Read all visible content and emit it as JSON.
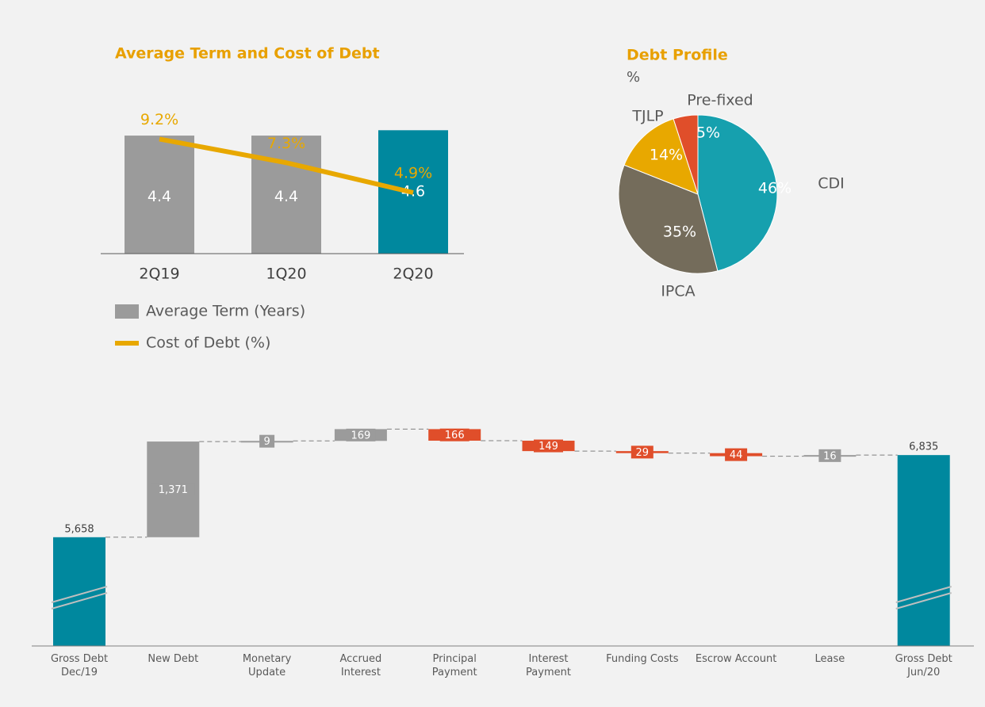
{
  "chart_data": [
    {
      "type": "bar",
      "title": "Average Term and Cost of Debt",
      "categories": [
        "2Q19",
        "1Q20",
        "2Q20"
      ],
      "series": [
        {
          "name": "Average Term (Years)",
          "type": "bar",
          "color": "#9b9b9b",
          "colors": [
            "#9b9b9b",
            "#9b9b9b",
            "#00889e"
          ],
          "values": [
            4.4,
            4.4,
            4.6
          ]
        },
        {
          "name": "Cost of Debt (%)",
          "type": "line",
          "axis": "y2",
          "color": "#e8a800",
          "values": [
            9.2,
            7.3,
            4.9
          ],
          "value_labels": [
            "9.2%",
            "7.3%",
            "4.9%"
          ]
        }
      ],
      "ylim": [
        0,
        6.5
      ],
      "y2lim": [
        0,
        14
      ]
    },
    {
      "type": "pie",
      "title": "Debt Profile",
      "subtitle": "%",
      "categories": [
        "CDI",
        "IPCA",
        "TJLP",
        "Pre-fixed"
      ],
      "values": [
        46,
        35,
        14,
        5
      ],
      "value_labels": [
        "46%",
        "35%",
        "14%",
        "5%"
      ],
      "colors": [
        "#16a0ae",
        "#746c5b",
        "#e8a800",
        "#e04e2a"
      ]
    },
    {
      "type": "waterfall",
      "categories": [
        "Gross Debt\nDec/19",
        "New Debt",
        "Monetary\nUpdate",
        "Accrued\nInterest",
        "Principal\nPayment",
        "Interest\nPayment",
        "Funding Costs",
        "Escrow Account",
        "Lease",
        "Gross Debt\nJun/20"
      ],
      "values": [
        5658,
        1371,
        9,
        169,
        -166,
        -149,
        -29,
        -44,
        16,
        6835
      ],
      "value_labels": [
        "5,658",
        "1,371",
        "9",
        "169",
        "166",
        "149",
        "29",
        "44",
        "16",
        "6,835"
      ],
      "is_total": [
        true,
        false,
        false,
        false,
        false,
        false,
        false,
        false,
        false,
        true
      ],
      "colors": {
        "total": "#00889e",
        "increase": "#9b9b9b",
        "decrease": "#e04e2a"
      },
      "ylim": [
        4100,
        7450
      ]
    }
  ]
}
